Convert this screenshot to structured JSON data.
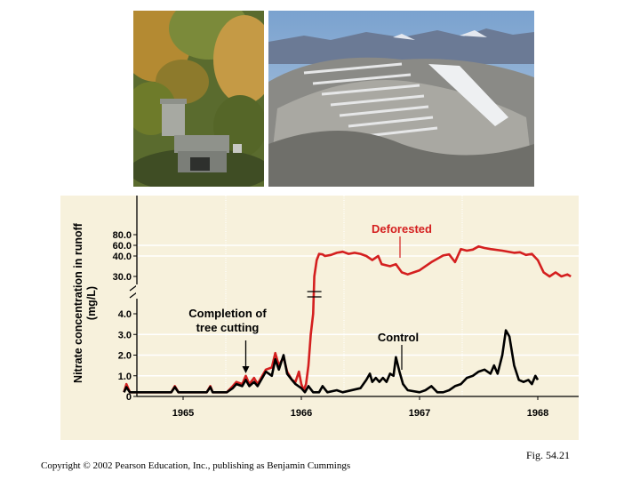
{
  "figure_label": "Fig. 54.21",
  "copyright": "Copyright © 2002 Pearson Education, Inc., publishing as Benjamin Cummings",
  "colors": {
    "deforested": "#d41f1f",
    "control": "#000000",
    "panel": "#f7f1dc",
    "grid": "#ffffff"
  },
  "photos": [
    {
      "name": "forest-gauging-station-photo"
    },
    {
      "name": "deforested-valley-photo"
    }
  ],
  "chart_data": {
    "type": "line",
    "title": "",
    "xlabel": "",
    "ylabel": "Nitrate concentration in runoff (mg/L)",
    "ylabel_lines": [
      "Nitrate concentration in runoff",
      "(mg/L)"
    ],
    "y_axis_scale": "broken: 0–4.0 lower segment, 30.0–80.0 upper segment",
    "y_ticks_lower": [
      "0",
      "1.0",
      "2.0",
      "3.0",
      "4.0"
    ],
    "y_ticks_upper": [
      "30.0",
      "40.0",
      "60.0",
      "80.0"
    ],
    "x_ticks": [
      "1965",
      "1966",
      "1967",
      "1968"
    ],
    "grid": true,
    "annotations": [
      {
        "text_lines": [
          "Completion of",
          "tree cutting"
        ],
        "x": 1965.53,
        "arrow": true
      }
    ],
    "series": [
      {
        "name": "Deforested",
        "color": "#d41f1f",
        "points": [
          [
            1964.5,
            0.2
          ],
          [
            1964.52,
            0.6
          ],
          [
            1964.55,
            0.2
          ],
          [
            1964.9,
            0.2
          ],
          [
            1964.93,
            0.5
          ],
          [
            1964.96,
            0.2
          ],
          [
            1965.2,
            0.2
          ],
          [
            1965.23,
            0.5
          ],
          [
            1965.25,
            0.2
          ],
          [
            1965.37,
            0.2
          ],
          [
            1965.42,
            0.5
          ],
          [
            1965.45,
            0.7
          ],
          [
            1965.5,
            0.6
          ],
          [
            1965.53,
            1.0
          ],
          [
            1965.56,
            0.6
          ],
          [
            1965.6,
            0.9
          ],
          [
            1965.63,
            0.6
          ],
          [
            1965.7,
            1.3
          ],
          [
            1965.75,
            1.4
          ],
          [
            1965.78,
            2.1
          ],
          [
            1965.81,
            1.5
          ],
          [
            1965.85,
            1.9
          ],
          [
            1965.88,
            1.2
          ],
          [
            1965.92,
            0.8
          ],
          [
            1965.95,
            0.7
          ],
          [
            1965.98,
            1.2
          ],
          [
            1966.0,
            0.6
          ],
          [
            1966.02,
            0.3
          ],
          [
            1966.04,
            0.6
          ],
          [
            1966.06,
            1.5
          ],
          [
            1966.08,
            3.0
          ],
          [
            1966.1,
            4.0
          ],
          [
            1966.11,
            30.0
          ],
          [
            1966.13,
            38.0
          ],
          [
            1966.15,
            44.0
          ],
          [
            1966.18,
            43.0
          ],
          [
            1966.2,
            40.0
          ],
          [
            1966.25,
            42.0
          ],
          [
            1966.3,
            46.0
          ],
          [
            1966.35,
            48.0
          ],
          [
            1966.4,
            44.0
          ],
          [
            1966.45,
            46.0
          ],
          [
            1966.5,
            44.0
          ],
          [
            1966.55,
            40.0
          ],
          [
            1966.6,
            38.0
          ],
          [
            1966.65,
            40.0
          ],
          [
            1966.68,
            36.0
          ],
          [
            1966.75,
            35.0
          ],
          [
            1966.8,
            36.0
          ],
          [
            1966.85,
            32.0
          ],
          [
            1966.9,
            31.0
          ],
          [
            1966.95,
            32.0
          ],
          [
            1967.0,
            33.0
          ],
          [
            1967.1,
            37.0
          ],
          [
            1967.2,
            41.0
          ],
          [
            1967.25,
            43.0
          ],
          [
            1967.3,
            37.0
          ],
          [
            1967.35,
            53.0
          ],
          [
            1967.4,
            50.0
          ],
          [
            1967.45,
            52.0
          ],
          [
            1967.5,
            58.0
          ],
          [
            1967.55,
            55.0
          ],
          [
            1967.6,
            53.0
          ],
          [
            1967.7,
            50.0
          ],
          [
            1967.8,
            46.0
          ],
          [
            1967.85,
            47.0
          ],
          [
            1967.9,
            42.0
          ],
          [
            1967.95,
            44.0
          ],
          [
            1968.0,
            38.0
          ],
          [
            1968.05,
            32.0
          ],
          [
            1968.1,
            30.0
          ],
          [
            1968.15,
            32.0
          ],
          [
            1968.2,
            30.0
          ],
          [
            1968.25,
            31.0
          ],
          [
            1968.28,
            30.0
          ]
        ]
      },
      {
        "name": "Control",
        "color": "#000000",
        "points": [
          [
            1964.5,
            0.2
          ],
          [
            1964.52,
            0.45
          ],
          [
            1964.55,
            0.2
          ],
          [
            1964.9,
            0.2
          ],
          [
            1964.93,
            0.45
          ],
          [
            1964.96,
            0.2
          ],
          [
            1965.2,
            0.2
          ],
          [
            1965.23,
            0.45
          ],
          [
            1965.25,
            0.2
          ],
          [
            1965.37,
            0.2
          ],
          [
            1965.42,
            0.4
          ],
          [
            1965.45,
            0.6
          ],
          [
            1965.5,
            0.5
          ],
          [
            1965.53,
            0.8
          ],
          [
            1965.56,
            0.5
          ],
          [
            1965.6,
            0.7
          ],
          [
            1965.63,
            0.5
          ],
          [
            1965.7,
            1.2
          ],
          [
            1965.75,
            1.0
          ],
          [
            1965.78,
            1.8
          ],
          [
            1965.81,
            1.3
          ],
          [
            1965.85,
            2.0
          ],
          [
            1965.88,
            1.1
          ],
          [
            1965.92,
            0.8
          ],
          [
            1965.95,
            0.6
          ],
          [
            1966.0,
            0.4
          ],
          [
            1966.03,
            0.2
          ],
          [
            1966.06,
            0.5
          ],
          [
            1966.1,
            0.2
          ],
          [
            1966.15,
            0.2
          ],
          [
            1966.18,
            0.5
          ],
          [
            1966.22,
            0.2
          ],
          [
            1966.3,
            0.3
          ],
          [
            1966.35,
            0.2
          ],
          [
            1966.5,
            0.4
          ],
          [
            1966.55,
            0.8
          ],
          [
            1966.58,
            1.1
          ],
          [
            1966.6,
            0.7
          ],
          [
            1966.63,
            0.9
          ],
          [
            1966.66,
            0.7
          ],
          [
            1966.69,
            0.9
          ],
          [
            1966.72,
            0.7
          ],
          [
            1966.75,
            1.1
          ],
          [
            1966.78,
            1.0
          ],
          [
            1966.8,
            1.9
          ],
          [
            1966.83,
            1.2
          ],
          [
            1966.86,
            0.6
          ],
          [
            1966.9,
            0.3
          ],
          [
            1967.0,
            0.2
          ],
          [
            1967.05,
            0.3
          ],
          [
            1967.1,
            0.5
          ],
          [
            1967.15,
            0.2
          ],
          [
            1967.2,
            0.2
          ],
          [
            1967.25,
            0.3
          ],
          [
            1967.3,
            0.5
          ],
          [
            1967.35,
            0.6
          ],
          [
            1967.4,
            0.9
          ],
          [
            1967.45,
            1.0
          ],
          [
            1967.5,
            1.2
          ],
          [
            1967.55,
            1.3
          ],
          [
            1967.6,
            1.1
          ],
          [
            1967.63,
            1.5
          ],
          [
            1967.66,
            1.1
          ],
          [
            1967.7,
            2.0
          ],
          [
            1967.73,
            3.2
          ],
          [
            1967.76,
            2.9
          ],
          [
            1967.8,
            1.5
          ],
          [
            1967.84,
            0.8
          ],
          [
            1967.88,
            0.7
          ],
          [
            1967.92,
            0.8
          ],
          [
            1967.95,
            0.6
          ],
          [
            1967.98,
            1.0
          ],
          [
            1968.0,
            0.8
          ]
        ]
      }
    ]
  }
}
